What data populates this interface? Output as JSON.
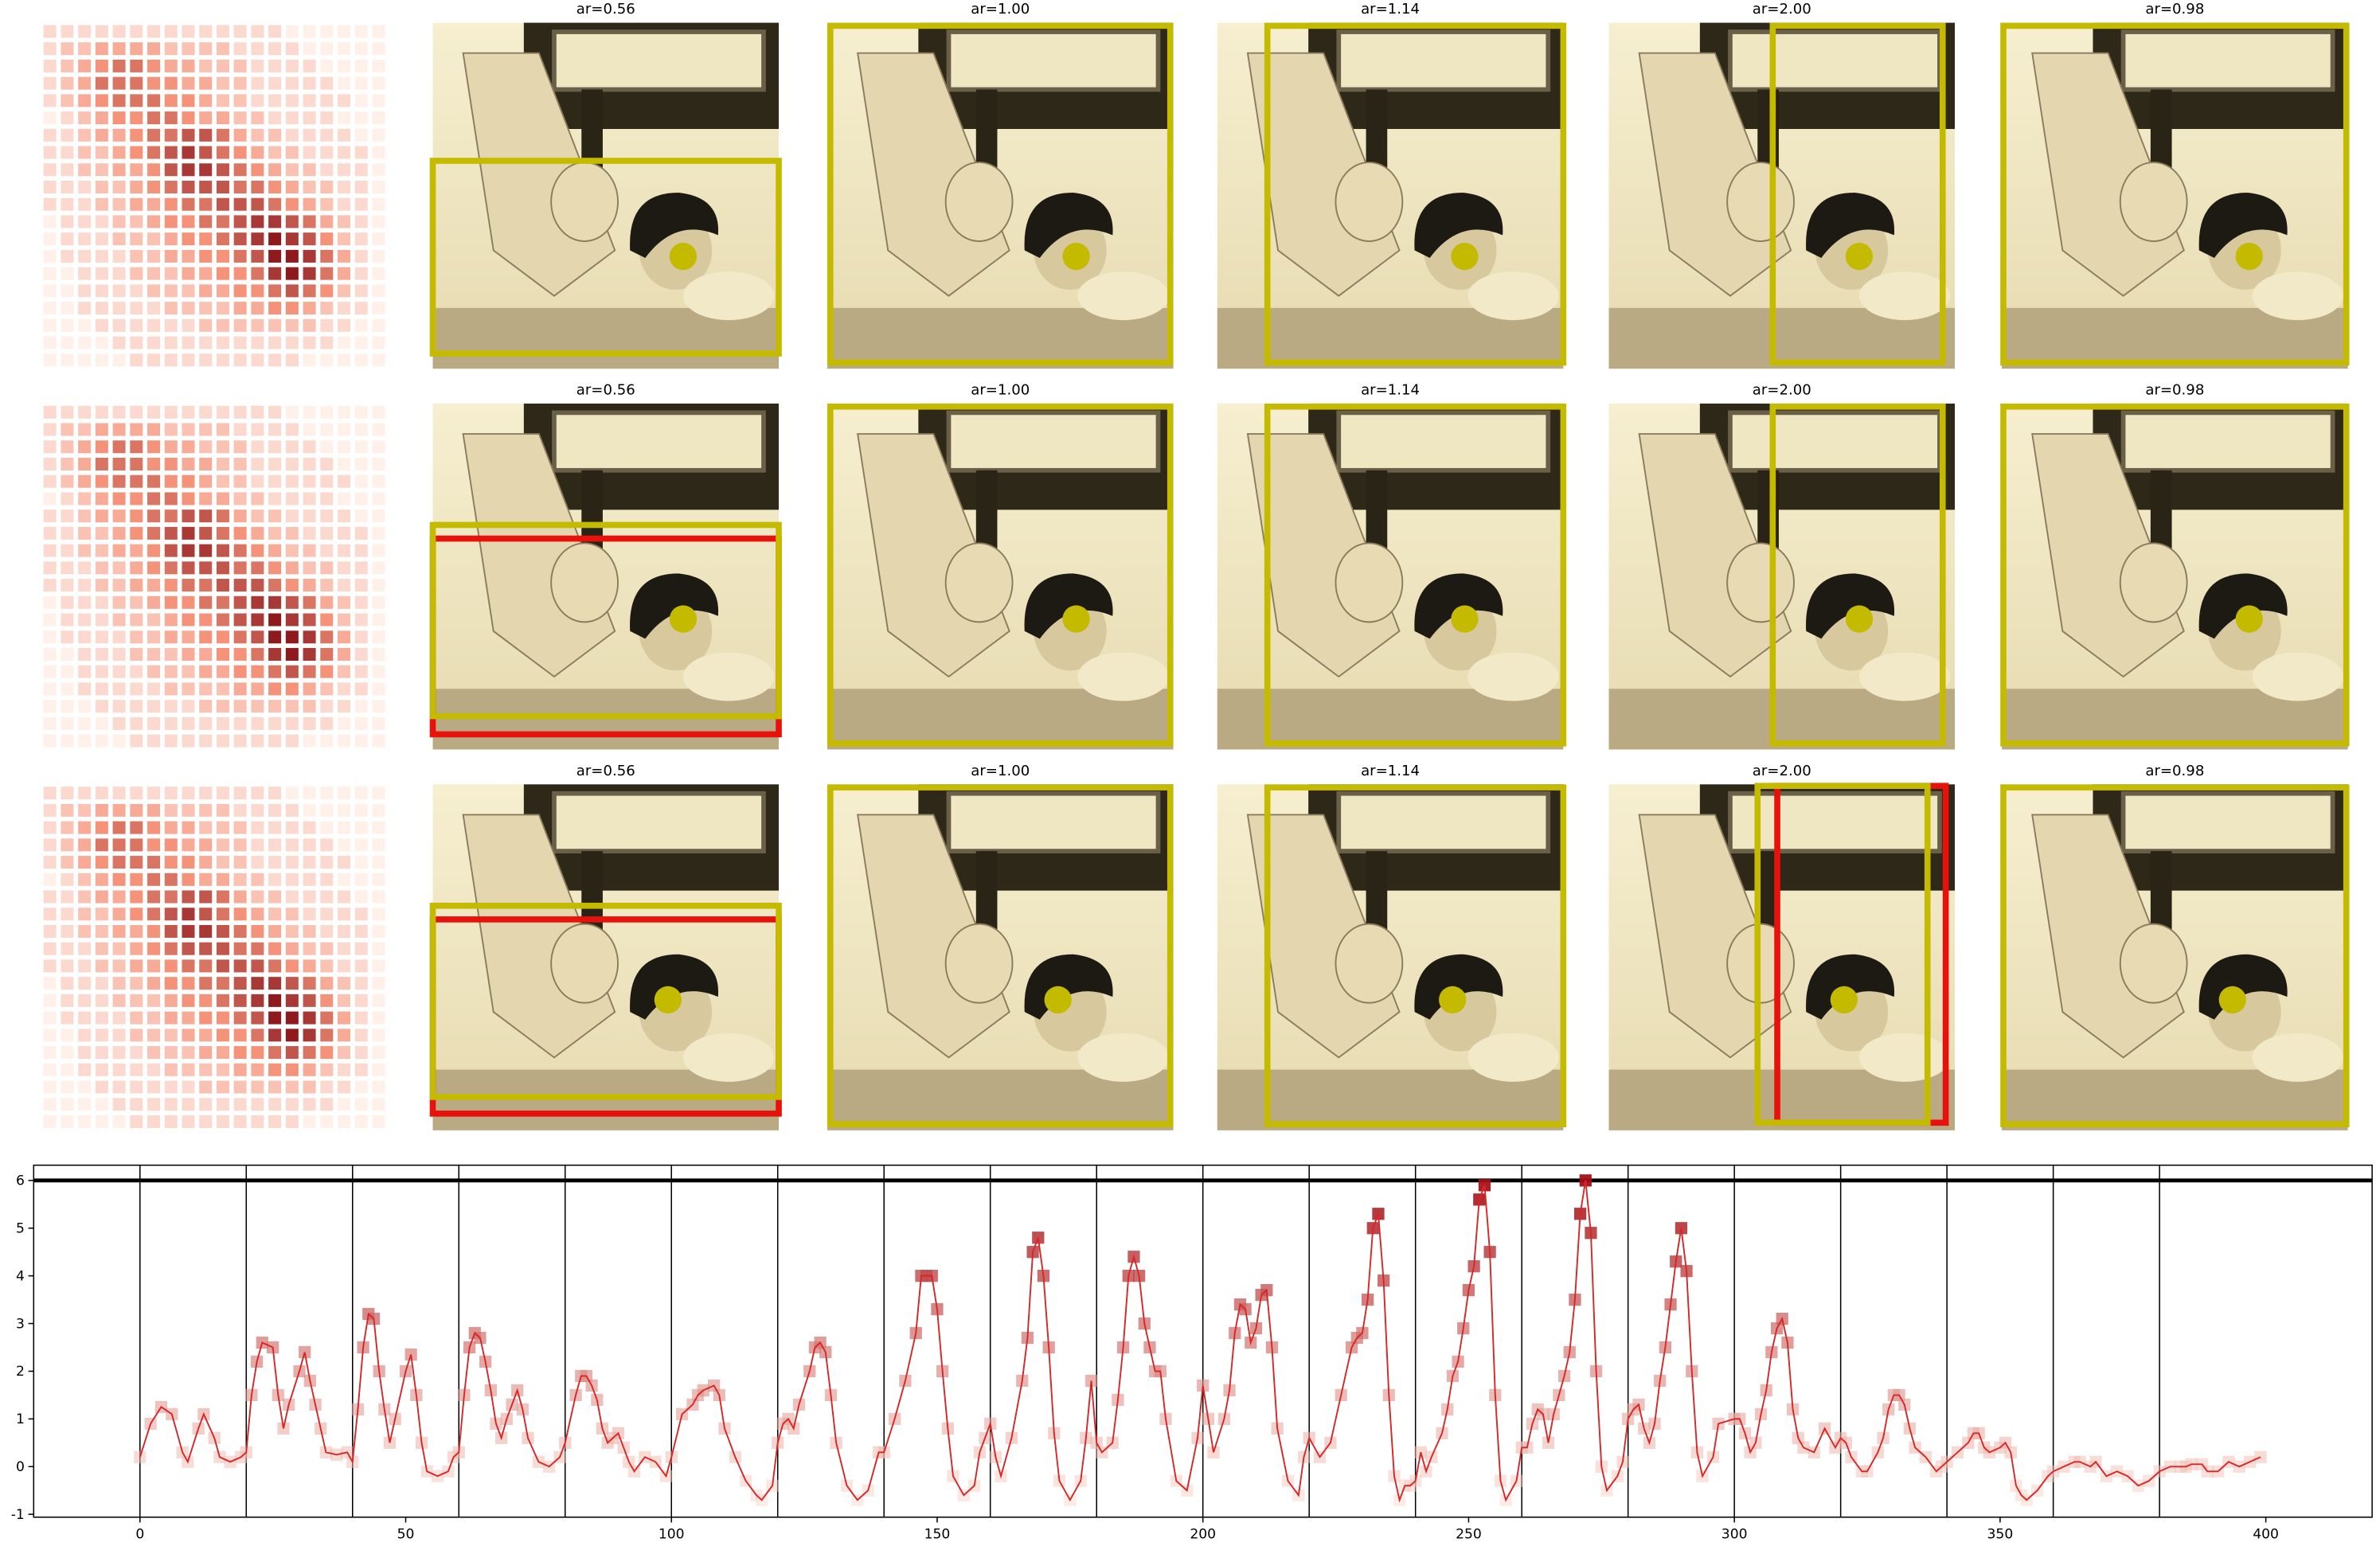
{
  "image_grid": {
    "rows": [
      {
        "titles": [
          "ar=0.56",
          "ar=1.00",
          "ar=1.14",
          "ar=2.00",
          "ar=0.98"
        ]
      },
      {
        "titles": [
          "ar=0.56",
          "ar=1.00",
          "ar=1.14",
          "ar=2.00",
          "ar=0.98"
        ]
      },
      {
        "titles": [
          "ar=0.56",
          "ar=1.00",
          "ar=1.14",
          "ar=2.00",
          "ar=0.98"
        ]
      }
    ],
    "heatmap_colors": [
      "#fff0ea",
      "#f4937a",
      "#8e1a1e"
    ],
    "heatmap": [
      [
        1,
        1,
        1,
        1,
        1,
        1,
        1,
        1,
        1,
        1,
        1,
        1,
        1,
        1,
        0,
        0,
        0,
        0,
        0,
        0
      ],
      [
        1,
        2,
        2,
        3,
        3,
        3,
        3,
        2,
        2,
        2,
        2,
        1,
        1,
        1,
        1,
        0,
        0,
        0,
        0,
        0
      ],
      [
        1,
        2,
        3,
        4,
        5,
        5,
        4,
        3,
        3,
        2,
        2,
        2,
        1,
        1,
        1,
        1,
        0,
        0,
        0,
        0
      ],
      [
        1,
        2,
        3,
        5,
        5,
        5,
        4,
        4,
        3,
        3,
        2,
        2,
        1,
        1,
        1,
        1,
        1,
        0,
        0,
        0
      ],
      [
        1,
        2,
        3,
        4,
        5,
        5,
        5,
        4,
        4,
        3,
        2,
        2,
        1,
        1,
        1,
        1,
        1,
        1,
        0,
        0
      ],
      [
        0,
        1,
        2,
        3,
        4,
        4,
        5,
        5,
        4,
        3,
        3,
        2,
        2,
        1,
        1,
        1,
        1,
        0,
        0,
        0
      ],
      [
        1,
        1,
        2,
        3,
        3,
        4,
        5,
        5,
        6,
        6,
        5,
        3,
        2,
        2,
        1,
        1,
        1,
        1,
        0,
        0
      ],
      [
        1,
        1,
        2,
        2,
        3,
        4,
        5,
        6,
        7,
        6,
        5,
        4,
        3,
        2,
        2,
        1,
        1,
        1,
        1,
        0
      ],
      [
        1,
        1,
        2,
        2,
        3,
        3,
        4,
        6,
        7,
        7,
        6,
        5,
        4,
        3,
        2,
        2,
        1,
        1,
        1,
        0
      ],
      [
        1,
        1,
        1,
        2,
        2,
        3,
        4,
        5,
        6,
        6,
        6,
        5,
        5,
        4,
        3,
        2,
        2,
        1,
        1,
        0
      ],
      [
        1,
        1,
        1,
        2,
        2,
        3,
        3,
        4,
        5,
        5,
        6,
        6,
        6,
        5,
        4,
        3,
        2,
        1,
        1,
        0
      ],
      [
        0,
        1,
        1,
        1,
        2,
        2,
        3,
        4,
        4,
        5,
        5,
        6,
        7,
        7,
        6,
        5,
        3,
        2,
        1,
        0
      ],
      [
        0,
        1,
        1,
        1,
        2,
        2,
        2,
        3,
        4,
        4,
        5,
        6,
        7,
        8,
        7,
        6,
        4,
        2,
        1,
        0
      ],
      [
        0,
        1,
        1,
        1,
        1,
        2,
        2,
        3,
        3,
        4,
        4,
        5,
        6,
        8,
        8,
        7,
        5,
        3,
        1,
        0
      ],
      [
        0,
        0,
        1,
        1,
        1,
        2,
        2,
        2,
        3,
        3,
        4,
        4,
        5,
        7,
        8,
        7,
        5,
        3,
        1,
        0
      ],
      [
        0,
        0,
        1,
        1,
        1,
        1,
        2,
        2,
        2,
        3,
        3,
        4,
        4,
        5,
        6,
        5,
        4,
        2,
        1,
        0
      ],
      [
        0,
        0,
        1,
        1,
        1,
        1,
        1,
        2,
        2,
        2,
        2,
        3,
        3,
        4,
        4,
        3,
        2,
        1,
        1,
        0
      ],
      [
        0,
        0,
        0,
        1,
        1,
        1,
        1,
        1,
        1,
        2,
        2,
        2,
        2,
        2,
        2,
        2,
        1,
        1,
        0,
        0
      ],
      [
        0,
        0,
        0,
        0,
        1,
        1,
        1,
        1,
        1,
        1,
        1,
        1,
        1,
        1,
        1,
        1,
        1,
        0,
        0,
        0
      ],
      [
        0,
        0,
        0,
        0,
        0,
        1,
        1,
        1,
        1,
        1,
        1,
        1,
        1,
        1,
        1,
        0,
        0,
        0,
        0,
        0
      ]
    ]
  },
  "chart_data": {
    "type": "line",
    "color": "#d62728",
    "marker_colors": [
      "#fbd3c6",
      "#a50f15"
    ],
    "xlim": [
      -20,
      420
    ],
    "ylim": [
      -1.06,
      6.32
    ],
    "xticks": [
      0,
      50,
      100,
      150,
      200,
      250,
      300,
      350,
      400
    ],
    "yticks": [
      -1,
      0,
      1,
      2,
      3,
      4,
      5,
      6
    ],
    "vlines": [
      0,
      20,
      40,
      60,
      80,
      100,
      120,
      140,
      160,
      180,
      200,
      220,
      240,
      260,
      280,
      300,
      320,
      340,
      360,
      380
    ],
    "hline": 6,
    "x": [
      0,
      2,
      4,
      6,
      8,
      9,
      11,
      12,
      14,
      15,
      17,
      19,
      20,
      21,
      22,
      23,
      25,
      26,
      27,
      28,
      30,
      31,
      32,
      33,
      34,
      35,
      37,
      39,
      40,
      41,
      42,
      43,
      44,
      45,
      46,
      47,
      48,
      50,
      51,
      52,
      53,
      54,
      56,
      58,
      59,
      60,
      61,
      62,
      63,
      64,
      65,
      66,
      67,
      68,
      69,
      70,
      71,
      72,
      73,
      75,
      77,
      79,
      80,
      82,
      83,
      84,
      85,
      86,
      87,
      88,
      89,
      90,
      91,
      92,
      93,
      95,
      97,
      99,
      100,
      102,
      104,
      105,
      106,
      108,
      109,
      110,
      112,
      114,
      116,
      117,
      119,
      120,
      121,
      122,
      123,
      124,
      126,
      127,
      128,
      129,
      130,
      131,
      133,
      135,
      137,
      139,
      140,
      142,
      144,
      146,
      147,
      148,
      149,
      150,
      151,
      152,
      153,
      155,
      157,
      158,
      159,
      160,
      161,
      162,
      164,
      166,
      167,
      168,
      169,
      170,
      171,
      172,
      173,
      175,
      177,
      178,
      179,
      180,
      181,
      183,
      184,
      185,
      186,
      187,
      188,
      189,
      190,
      191,
      192,
      193,
      195,
      197,
      199,
      200,
      201,
      202,
      204,
      205,
      206,
      207,
      208,
      209,
      210,
      211,
      212,
      213,
      214,
      216,
      218,
      219,
      220,
      222,
      224,
      226,
      228,
      229,
      230,
      231,
      232,
      233,
      234,
      235,
      236,
      237,
      238,
      239,
      240,
      241,
      242,
      243,
      245,
      246,
      247,
      248,
      249,
      250,
      251,
      252,
      253,
      254,
      255,
      256,
      257,
      259,
      260,
      261,
      262,
      263,
      264,
      265,
      266,
      267,
      268,
      269,
      270,
      271,
      272,
      273,
      274,
      275,
      276,
      278,
      279,
      280,
      281,
      282,
      283,
      284,
      285,
      286,
      287,
      288,
      289,
      290,
      291,
      292,
      293,
      294,
      296,
      297,
      300,
      301,
      302,
      303,
      304,
      305,
      306,
      307,
      308,
      309,
      310,
      311,
      312,
      313,
      315,
      317,
      319,
      320,
      321,
      322,
      324,
      325,
      327,
      328,
      329,
      330,
      331,
      332,
      333,
      334,
      336,
      338,
      339,
      340,
      342,
      344,
      345,
      346,
      347,
      348,
      350,
      351,
      352,
      353,
      354,
      355,
      357,
      359,
      360,
      362,
      364,
      365,
      367,
      368,
      370,
      372,
      374,
      376,
      378,
      380,
      382,
      384,
      385,
      386,
      388,
      389,
      391,
      393,
      395,
      397,
      399
    ],
    "values": [
      0.2,
      0.9,
      1.25,
      1.1,
      0.3,
      0.1,
      0.8,
      1.1,
      0.6,
      0.2,
      0.1,
      0.2,
      0.3,
      1.5,
      2.2,
      2.6,
      2.5,
      1.5,
      0.8,
      1.3,
      2.0,
      2.4,
      1.8,
      1.3,
      0.8,
      0.3,
      0.25,
      0.3,
      0.1,
      1.2,
      2.5,
      3.2,
      3.1,
      2.0,
      1.2,
      0.5,
      1.0,
      2.0,
      2.35,
      1.5,
      0.5,
      -0.1,
      -0.2,
      -0.1,
      0.2,
      0.3,
      1.5,
      2.5,
      2.8,
      2.7,
      2.2,
      1.6,
      0.9,
      0.6,
      1.0,
      1.3,
      1.6,
      1.2,
      0.6,
      0.1,
      0,
      0.2,
      0.5,
      1.5,
      1.9,
      1.9,
      1.7,
      1.4,
      0.8,
      0.5,
      0.6,
      0.7,
      0.4,
      0.1,
      -0.1,
      0.2,
      0.1,
      -0.2,
      0.2,
      1.1,
      1.3,
      1.5,
      1.6,
      1.7,
      1.5,
      0.8,
      0.2,
      -0.3,
      -0.6,
      -0.7,
      -0.4,
      0.5,
      0.9,
      1.0,
      0.8,
      1.3,
      2.0,
      2.5,
      2.6,
      2.4,
      1.5,
      0.5,
      -0.4,
      -0.7,
      -0.5,
      0.3,
      0.3,
      1.0,
      1.8,
      2.8,
      4.0,
      4.0,
      4.0,
      3.3,
      2.0,
      0.8,
      -0.2,
      -0.6,
      -0.4,
      0.3,
      0.6,
      0.9,
      0.2,
      -0.2,
      0.6,
      1.8,
      2.7,
      4.5,
      4.8,
      4.0,
      2.5,
      0.7,
      -0.3,
      -0.7,
      -0.3,
      0.6,
      1.8,
      0.5,
      0.3,
      0.5,
      1.4,
      2.5,
      4.0,
      4.4,
      4.0,
      3.0,
      2.5,
      2.0,
      2.0,
      1.0,
      -0.3,
      -0.5,
      0.6,
      1.7,
      1.0,
      0.3,
      1.0,
      1.6,
      2.8,
      3.4,
      3.3,
      2.6,
      2.9,
      3.6,
      3.7,
      2.5,
      0.8,
      -0.3,
      -0.6,
      0.2,
      0.6,
      0.2,
      0.5,
      1.5,
      2.5,
      2.7,
      2.8,
      3.5,
      5.0,
      5.3,
      3.9,
      1.5,
      -0.2,
      -0.7,
      -0.4,
      -0.4,
      -0.3,
      0.3,
      -0.1,
      0.2,
      0.7,
      1.2,
      1.9,
      2.2,
      2.9,
      3.7,
      4.2,
      5.6,
      5.9,
      4.5,
      1.5,
      -0.3,
      -0.7,
      -0.3,
      0.4,
      0.4,
      0.9,
      1.2,
      1.1,
      0.5,
      1.1,
      1.5,
      1.9,
      2.4,
      3.5,
      5.3,
      6.0,
      4.9,
      2.0,
      0,
      -0.5,
      -0.2,
      0.1,
      1.0,
      1.2,
      1.3,
      0.8,
      0.5,
      0.9,
      1.8,
      2.5,
      3.4,
      4.3,
      5.0,
      4.1,
      2.0,
      0.3,
      -0.2,
      0.2,
      0.9,
      1.0,
      1.0,
      0.7,
      0.3,
      0.5,
      1.1,
      1.6,
      2.4,
      2.9,
      3.1,
      2.6,
      1.2,
      0.6,
      0.4,
      0.3,
      0.8,
      0.4,
      0.6,
      0.5,
      0.2,
      -0.1,
      -0.1,
      0.3,
      0.6,
      1.2,
      1.5,
      1.5,
      1.3,
      0.8,
      0.4,
      0.2,
      -0.1,
      0,
      0.1,
      0.3,
      0.5,
      0.7,
      0.7,
      0.4,
      0.3,
      0.4,
      0.5,
      0.3,
      -0.4,
      -0.6,
      -0.7,
      -0.5,
      -0.2,
      -0.1,
      0,
      0.1,
      0.1,
      0,
      0.1,
      -0.2,
      -0.1,
      -0.2,
      -0.4,
      -0.3,
      -0.1,
      0,
      0,
      0,
      0.05,
      0.05,
      -0.1,
      -0.1,
      0.1,
      0,
      0.1,
      0.2
    ]
  }
}
